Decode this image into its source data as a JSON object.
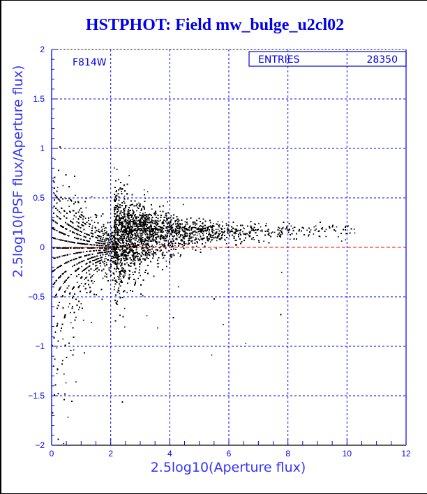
{
  "chart_data": {
    "type": "scatter",
    "title": "HSTPHOT: Field mw_bulge_u2cl02",
    "xlabel": "2.5log10(Aperture flux)",
    "ylabel": "2.5log10(PSF flux/Aperture flux)",
    "xlim": [
      0,
      12
    ],
    "ylim": [
      -2,
      2
    ],
    "xticks": [
      0,
      2,
      4,
      6,
      8,
      10,
      12
    ],
    "xtick_labels": [
      "0",
      "2",
      "4",
      "6",
      "8",
      "10",
      "12"
    ],
    "yticks": [
      2,
      1.5,
      1,
      0.5,
      0,
      -0.5,
      -1,
      -1.5,
      -2
    ],
    "ytick_labels": [
      "2",
      "1.5",
      "1",
      "0.5",
      "0",
      "−0.5",
      "−1",
      "−1.5",
      "−2"
    ],
    "grid": true,
    "annotation": "F814W",
    "stats": {
      "label": "ENTRIES",
      "value": "28350"
    },
    "reference_line": {
      "y": 0,
      "color": "#ff0000"
    },
    "entries": 28350,
    "distribution": {
      "quantized_region_xmax": 2.2,
      "quantization_step": 0.1,
      "core_x_start": 2.1,
      "core_x_mean_offset": 1.5,
      "x_max": 10.3,
      "y_mean_at_core": 0.15,
      "y_mean_slope": 0.004,
      "y_sigma_core": 0.22,
      "y_sigma_floor": 0.03
    },
    "colors": {
      "axis": "#0000ee",
      "points": "#000000",
      "grid": "#0000ff",
      "title": "#0000ee"
    }
  }
}
